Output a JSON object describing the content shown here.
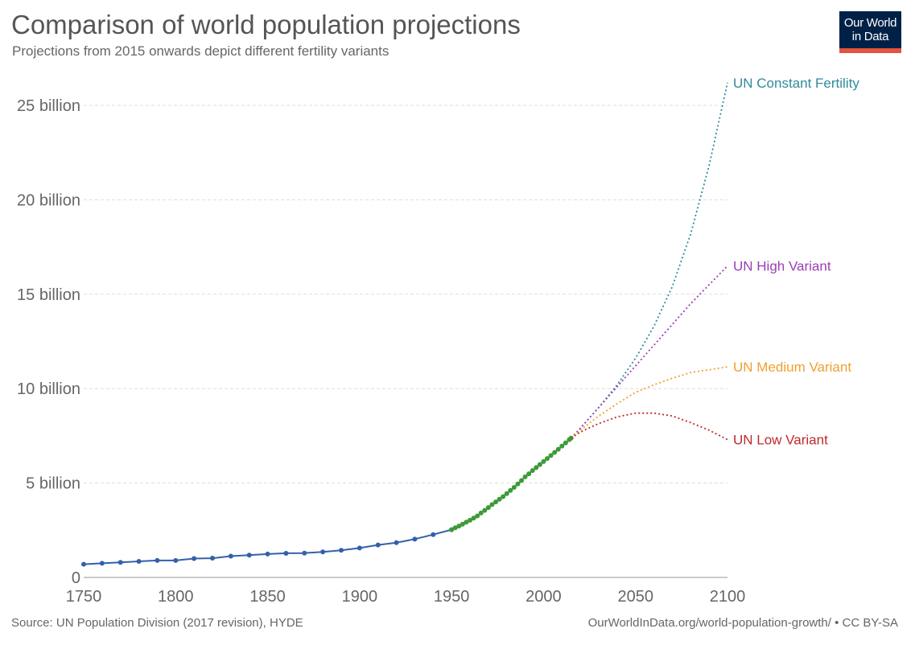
{
  "header": {
    "title": "Comparison of world population projections",
    "subtitle": "Projections from 2015 onwards depict different fertility variants"
  },
  "logo": {
    "line1": "Our World",
    "line2": "in Data",
    "bg_color": "#002147",
    "bar_color": "#e5533d"
  },
  "footer": {
    "source": "Source: UN Population Division (2017 revision), HYDE",
    "credit": "OurWorldInData.org/world-population-growth/ • CC BY-SA"
  },
  "chart_data": {
    "type": "line",
    "xlim": [
      1750,
      2100
    ],
    "ylim": [
      0,
      26.5
    ],
    "y_unit": "billion",
    "x_ticks": [
      1750,
      1800,
      1850,
      1900,
      1950,
      2000,
      2050,
      2100
    ],
    "y_ticks": [
      {
        "value": 0,
        "label": "0"
      },
      {
        "value": 5,
        "label": "5 billion"
      },
      {
        "value": 10,
        "label": "10 billion"
      },
      {
        "value": 15,
        "label": "15 billion"
      },
      {
        "value": 20,
        "label": "20 billion"
      },
      {
        "value": 25,
        "label": "25 billion"
      }
    ],
    "grid": "horizontal dashed",
    "legend": "inline labels at line ends (right)",
    "series": [
      {
        "key": "hyde",
        "color": "#3360a9",
        "style": "solid",
        "markers": true,
        "x": [
          1750,
          1760,
          1770,
          1780,
          1790,
          1800,
          1810,
          1820,
          1830,
          1840,
          1850,
          1860,
          1870,
          1880,
          1890,
          1900,
          1910,
          1920,
          1930,
          1940,
          1950
        ],
        "y": [
          0.7,
          0.75,
          0.8,
          0.85,
          0.9,
          0.9,
          1.0,
          1.02,
          1.13,
          1.18,
          1.24,
          1.28,
          1.29,
          1.35,
          1.44,
          1.56,
          1.72,
          1.84,
          2.03,
          2.27,
          2.53
        ]
      },
      {
        "key": "un_estimates",
        "color": "#3d9a38",
        "style": "solid",
        "markers": true,
        "x": [
          1950,
          1952,
          1954,
          1956,
          1958,
          1960,
          1962,
          1964,
          1966,
          1968,
          1970,
          1972,
          1974,
          1976,
          1978,
          1980,
          1982,
          1984,
          1986,
          1988,
          1990,
          1992,
          1994,
          1996,
          1998,
          2000,
          2002,
          2004,
          2006,
          2008,
          2010,
          2012,
          2014,
          2015
        ],
        "y": [
          2.53,
          2.63,
          2.72,
          2.82,
          2.93,
          3.03,
          3.14,
          3.26,
          3.41,
          3.55,
          3.7,
          3.86,
          4.0,
          4.14,
          4.28,
          4.44,
          4.61,
          4.77,
          4.95,
          5.13,
          5.33,
          5.49,
          5.66,
          5.82,
          5.98,
          6.14,
          6.3,
          6.46,
          6.62,
          6.79,
          6.96,
          7.13,
          7.3,
          7.38
        ]
      },
      {
        "name": "UN Constant Fertility",
        "color": "#2e8b9a",
        "style": "dotted",
        "markers": false,
        "x": [
          2015,
          2020,
          2030,
          2040,
          2050,
          2060,
          2070,
          2080,
          2090,
          2100
        ],
        "y": [
          7.38,
          7.9,
          9.0,
          10.2,
          11.6,
          13.3,
          15.4,
          18.2,
          21.8,
          26.2
        ]
      },
      {
        "name": "UN High Variant",
        "color": "#9a3fb6",
        "style": "dotted",
        "markers": false,
        "x": [
          2015,
          2020,
          2030,
          2040,
          2050,
          2060,
          2070,
          2080,
          2090,
          2100
        ],
        "y": [
          7.38,
          7.9,
          9.0,
          10.1,
          11.2,
          12.3,
          13.4,
          14.5,
          15.5,
          16.5
        ]
      },
      {
        "name": "UN Medium Variant",
        "color": "#f0a030",
        "style": "dotted",
        "markers": false,
        "x": [
          2015,
          2020,
          2030,
          2040,
          2050,
          2060,
          2070,
          2080,
          2090,
          2100
        ],
        "y": [
          7.38,
          7.8,
          8.55,
          9.2,
          9.8,
          10.2,
          10.55,
          10.85,
          11.0,
          11.15
        ]
      },
      {
        "name": "UN Low Variant",
        "color": "#c0282b",
        "style": "dotted",
        "markers": false,
        "x": [
          2015,
          2020,
          2030,
          2040,
          2050,
          2060,
          2070,
          2080,
          2090,
          2100
        ],
        "y": [
          7.38,
          7.7,
          8.15,
          8.5,
          8.7,
          8.7,
          8.55,
          8.2,
          7.8,
          7.3
        ]
      }
    ]
  }
}
